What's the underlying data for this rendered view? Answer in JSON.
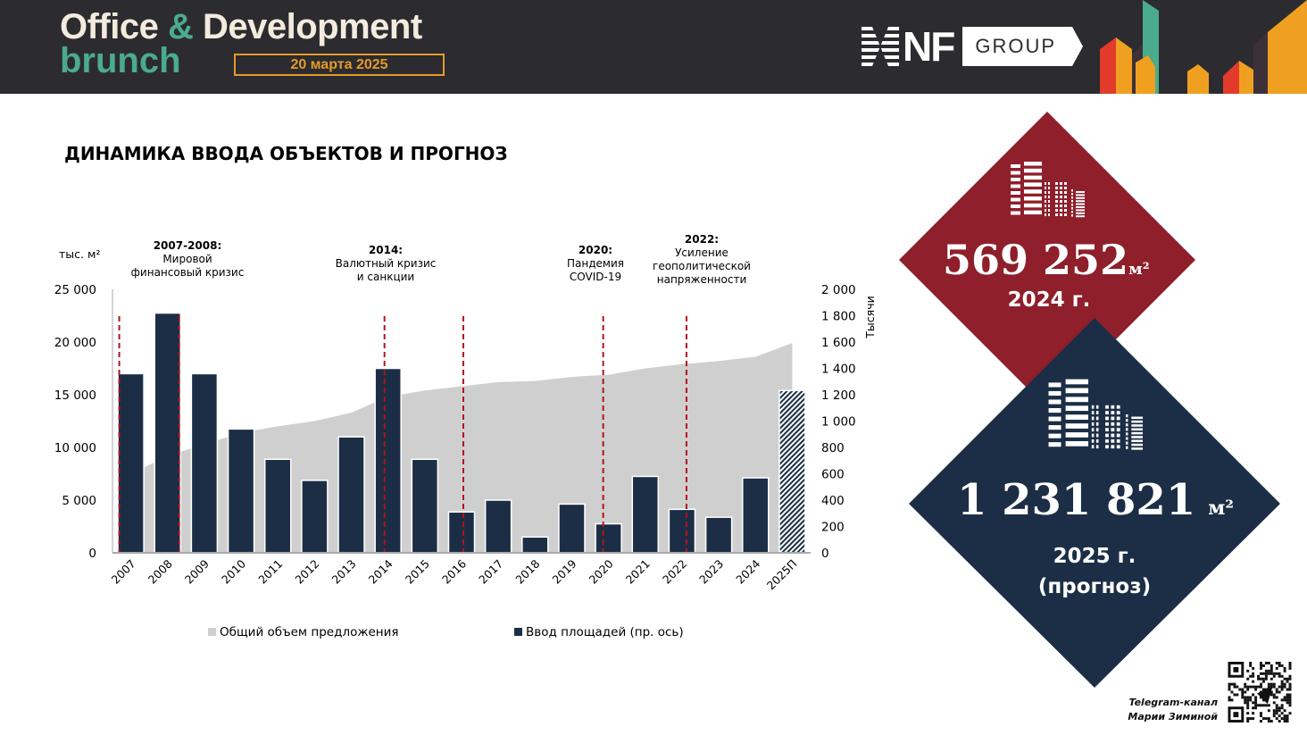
{
  "header": {
    "event_title_part1": "Office",
    "event_title_amp": "&",
    "event_title_part2": "Development",
    "event_subtitle": "brunch",
    "event_date": "20 марта 2025",
    "logo_text": "NF",
    "logo_group": "GROUP",
    "colors": {
      "background": "#2c2b30",
      "cream": "#f3ebdc",
      "green": "#4bab8d",
      "orange": "#e59b2a",
      "red": "#e23b2c"
    }
  },
  "page_title": "ДИНАМИКА ВВОДА ОБЪЕКТОВ И ПРОГНОЗ",
  "chart_data": {
    "type": "bar",
    "title": "ДИНАМИКА ВВОДА ОБЪЕКТОВ И ПРОГНОЗ",
    "ylabel_left": "тыс. м²",
    "ylabel_right": "Тысячи",
    "categories": [
      "2007",
      "2008",
      "2009",
      "2010",
      "2011",
      "2012",
      "2013",
      "2014",
      "2015",
      "2016",
      "2017",
      "2018",
      "2019",
      "2020",
      "2021",
      "2022",
      "2023",
      "2024",
      "2025П"
    ],
    "left_axis": {
      "range": [
        0,
        25000
      ],
      "ticks": [
        "0",
        "5 000",
        "10 000",
        "15 000",
        "20 000",
        "25 000"
      ],
      "tick_values": [
        0,
        5000,
        10000,
        15000,
        20000,
        25000
      ]
    },
    "right_axis": {
      "range": [
        0,
        2000
      ],
      "ticks": [
        "0",
        "200",
        "400",
        "600",
        "800",
        "1 000",
        "1 200",
        "1 400",
        "1 600",
        "1 800",
        "2 000"
      ],
      "tick_values": [
        0,
        200,
        400,
        600,
        800,
        1000,
        1200,
        1400,
        1600,
        1800,
        2000
      ]
    },
    "series": [
      {
        "name": "Общий объем предложения",
        "type": "area",
        "axis": "left",
        "color": "#d0cfcf",
        "values": [
          7500,
          9200,
          10300,
          11400,
          12000,
          12500,
          13300,
          14800,
          15400,
          15800,
          16200,
          16300,
          16700,
          16900,
          17500,
          17900,
          18200,
          18600,
          19900
        ]
      },
      {
        "name": "Ввод площадей (пр. ось)",
        "type": "bar",
        "axis": "right",
        "color": "#1b2e45",
        "forecast_index": 18,
        "values": [
          1360,
          1820,
          1360,
          940,
          710,
          550,
          880,
          1400,
          710,
          310,
          400,
          120,
          370,
          220,
          580,
          330,
          270,
          569,
          1232
        ]
      }
    ],
    "events": [
      {
        "year": "2007",
        "dashed_line": true
      },
      {
        "year": "2008",
        "dashed_line": true,
        "label_bold": "2007-2008:",
        "label_lines": [
          "Мировой",
          "финансовый кризис"
        ]
      },
      {
        "year": "2014",
        "dashed_line": true,
        "label_bold": "2014:",
        "label_lines": [
          "Валютный кризис",
          "и санкции"
        ]
      },
      {
        "year": "2016",
        "dashed_line": true
      },
      {
        "year": "2020",
        "dashed_line": true,
        "label_bold": "2020:",
        "label_lines": [
          "Пандемия",
          "COVID-19"
        ]
      },
      {
        "year": "2022",
        "dashed_line": true,
        "label_bold": "2022:",
        "label_lines": [
          "Усиление",
          "геополитической",
          "напряженности"
        ]
      }
    ],
    "event_line_color": "#b0141e",
    "legend": {
      "position": "bottom",
      "items": [
        "Общий объем предложения",
        "Ввод площадей (пр. ось)"
      ]
    },
    "grid": false
  },
  "stats": [
    {
      "value": "569 252",
      "unit": "м²",
      "year": "2024 г.",
      "color": "#8e1f2b",
      "icon": "buildings-icon"
    },
    {
      "value": "1 231 821",
      "unit": "м²",
      "year_line1": "2025 г.",
      "year_line2": "(прогноз)",
      "color": "#1b2e45",
      "icon": "buildings-icon"
    }
  ],
  "footer": {
    "telegram_line1": "Telegram-канал",
    "telegram_line2": "Марии Зиминой",
    "qr_icon": "qr-code-icon"
  }
}
